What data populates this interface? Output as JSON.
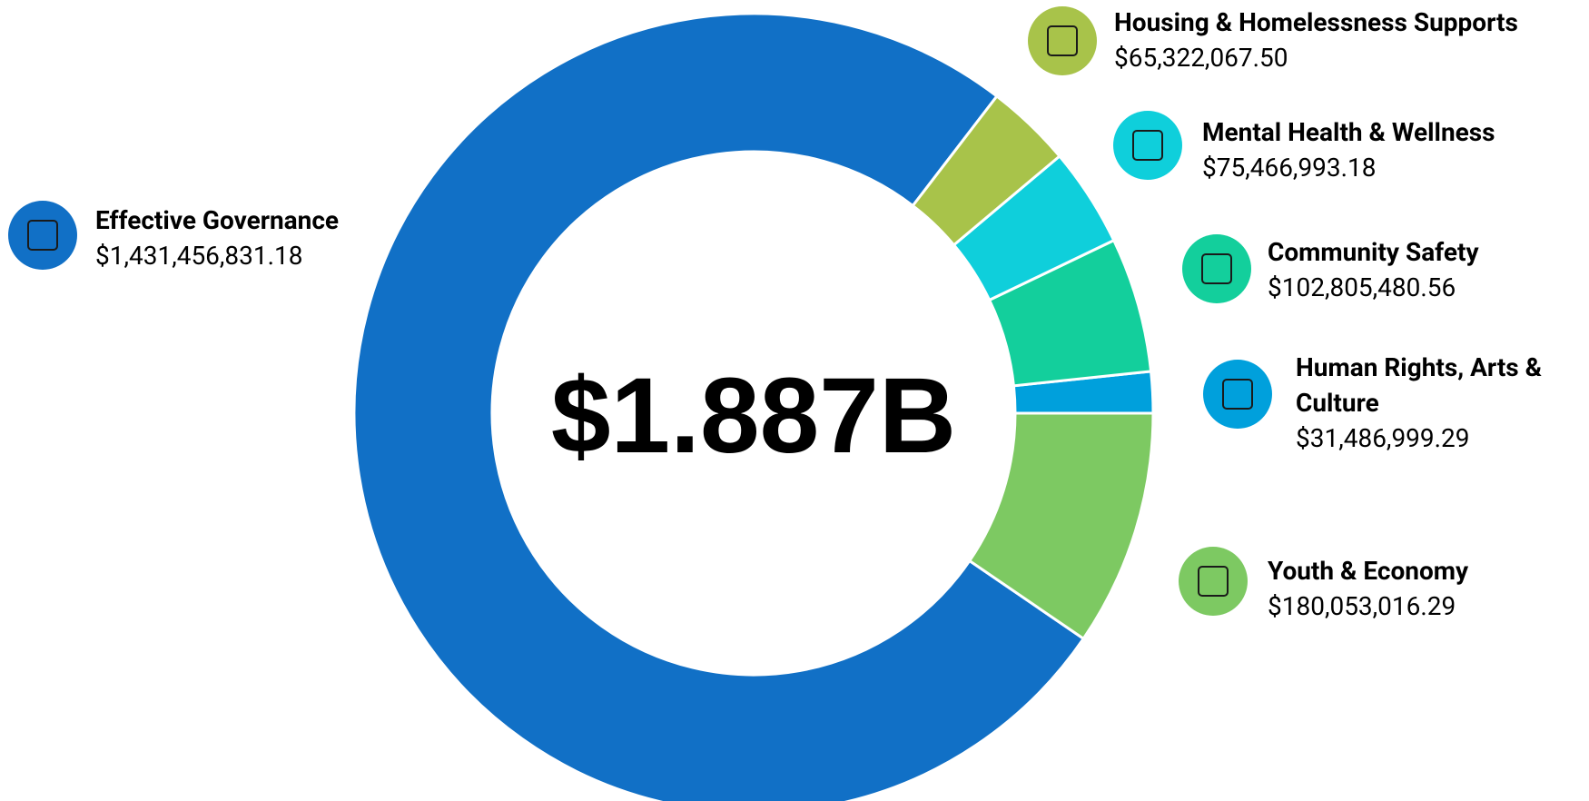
{
  "chart_data": {
    "type": "donut",
    "center_label": "$1.887B",
    "categories": [
      "Housing & Homelessness Supports",
      "Mental Health & Wellness",
      "Community Safety",
      "Human Rights, Arts & Culture",
      "Youth & Economy",
      "Effective Governance"
    ],
    "values": [
      65322067.5,
      75466993.18,
      102805480.56,
      31486999.29,
      180053016.29,
      1431456831.18
    ],
    "value_labels": [
      "$65,322,067.50",
      "$75,466,993.18",
      "$102,805,480.56",
      "$31,486,999.29",
      "$180,053,016.29",
      "$1,431,456,831.18"
    ],
    "colors": [
      "#a8c34a",
      "#0fcfdb",
      "#13cf9c",
      "#00a0dc",
      "#7dc962",
      "#1170c6"
    ]
  }
}
